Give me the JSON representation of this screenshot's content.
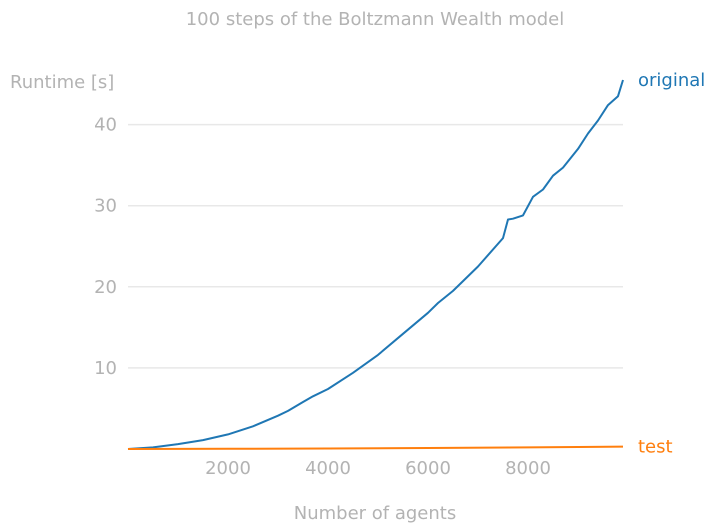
{
  "chart_data": {
    "type": "line",
    "title": "100 steps of the Boltzmann Wealth model",
    "xlabel": "Number of agents",
    "ylabel": "Runtime [s]",
    "xlim": [
      0,
      9900
    ],
    "ylim": [
      0,
      45.5
    ],
    "x_ticks": [
      2000,
      4000,
      6000,
      8000
    ],
    "y_ticks": [
      10,
      20,
      30,
      40
    ],
    "grid": "horizontal",
    "legend": "direct labels at right end of lines",
    "series": [
      {
        "name": "original",
        "color": "#1f77b4",
        "x": [
          0,
          500,
          1000,
          1500,
          2000,
          2500,
          3000,
          3200,
          3500,
          3700,
          4000,
          4500,
          5000,
          5500,
          6000,
          6200,
          6500,
          7000,
          7500,
          7600,
          7700,
          7900,
          8100,
          8300,
          8500,
          8700,
          9000,
          9200,
          9400,
          9600,
          9800,
          9900
        ],
        "y": [
          0,
          0.2,
          0.6,
          1.1,
          1.8,
          2.8,
          4.1,
          4.7,
          5.8,
          6.5,
          7.4,
          9.4,
          11.6,
          14.2,
          16.8,
          18,
          19.5,
          22.5,
          26,
          28.3,
          28.4,
          28.8,
          31.1,
          32,
          33.7,
          34.7,
          37,
          38.9,
          40.5,
          42.4,
          43.5,
          45.5
        ]
      },
      {
        "name": "test",
        "color": "#ff7f0e",
        "x": [
          0,
          2000,
          4000,
          6000,
          8000,
          9000,
          9900
        ],
        "y": [
          0,
          0.02,
          0.06,
          0.12,
          0.2,
          0.25,
          0.3
        ]
      }
    ]
  }
}
